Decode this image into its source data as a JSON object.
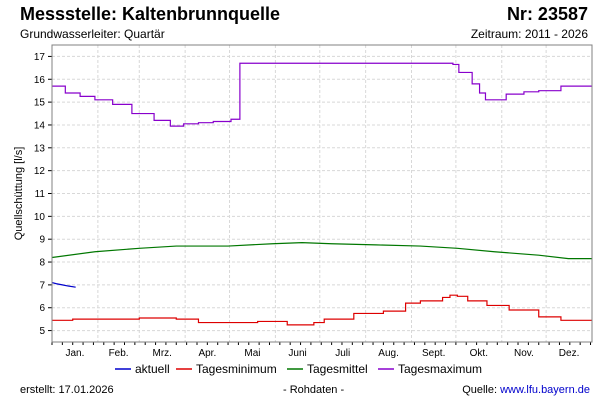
{
  "header": {
    "title": "Messstelle: Kaltenbrunnquelle",
    "number": "Nr: 23587",
    "aquifer": "Grundwasserleiter: Quartär",
    "period": "Zeitraum: 2011 - 2026"
  },
  "footer": {
    "created_label": "erstellt:",
    "created_date": "17.01.2026",
    "raw_data": "- Rohdaten -",
    "source_label": "Quelle:",
    "source_link": "www.lfu.bayern.de"
  },
  "colors": {
    "aktuell": "#0000cc",
    "minimum": "#dd0000",
    "mittel": "#007700",
    "maximum": "#8800cc",
    "grid": "#d8d8d8"
  },
  "chart_data": {
    "type": "line",
    "title": "Messstelle: Kaltenbrunnquelle",
    "ylabel": "Quellschüttung [l/s]",
    "xlabel": "",
    "ylim": [
      4.5,
      17.5
    ],
    "yticks": [
      "5",
      "6",
      "7",
      "8",
      "9",
      "10",
      "11",
      "12",
      "13",
      "14",
      "15",
      "16",
      "17"
    ],
    "month_ticks": [
      "Jan.",
      "Feb.",
      "Mrz.",
      "Apr.",
      "Mai",
      "Juni",
      "Juli",
      "Aug.",
      "Sept.",
      "Okt.",
      "Nov.",
      "Dez."
    ],
    "grid": true,
    "legend_position": "bottom",
    "series": [
      {
        "name": "aktuell",
        "step": false,
        "x": [
          1,
          4,
          8,
          12,
          17
        ],
        "values": [
          7.1,
          7.05,
          7.0,
          6.95,
          6.9
        ]
      },
      {
        "name": "Tagesminimum",
        "step": true,
        "x": [
          1,
          15,
          50,
          60,
          85,
          100,
          130,
          140,
          160,
          170,
          178,
          185,
          205,
          218,
          225,
          240,
          250,
          265,
          270,
          275,
          282,
          295,
          310,
          330,
          345,
          366
        ],
        "values": [
          5.45,
          5.5,
          5.5,
          5.55,
          5.5,
          5.35,
          5.35,
          5.4,
          5.25,
          5.25,
          5.35,
          5.5,
          5.75,
          5.75,
          5.85,
          6.2,
          6.3,
          6.45,
          6.55,
          6.5,
          6.3,
          6.1,
          5.9,
          5.6,
          5.45,
          5.45
        ]
      },
      {
        "name": "Tagesmittel",
        "step": false,
        "x": [
          1,
          30,
          60,
          85,
          120,
          150,
          170,
          190,
          220,
          250,
          275,
          300,
          330,
          350,
          366
        ],
        "values": [
          8.2,
          8.45,
          8.6,
          8.7,
          8.7,
          8.8,
          8.85,
          8.8,
          8.75,
          8.7,
          8.6,
          8.45,
          8.3,
          8.15,
          8.15
        ]
      },
      {
        "name": "Tagesmaximum",
        "step": true,
        "x": [
          1,
          5,
          10,
          20,
          30,
          42,
          55,
          70,
          81,
          90,
          100,
          110,
          122,
          128,
          180,
          220,
          260,
          272,
          276,
          285,
          290,
          294,
          300,
          308,
          320,
          330,
          345,
          366
        ],
        "values": [
          15.7,
          15.7,
          15.4,
          15.25,
          15.1,
          14.9,
          14.5,
          14.2,
          13.95,
          14.05,
          14.1,
          14.15,
          14.25,
          16.7,
          16.7,
          16.7,
          16.7,
          16.65,
          16.3,
          15.8,
          15.4,
          15.1,
          15.1,
          15.35,
          15.45,
          15.5,
          15.7,
          15.7
        ]
      }
    ]
  }
}
